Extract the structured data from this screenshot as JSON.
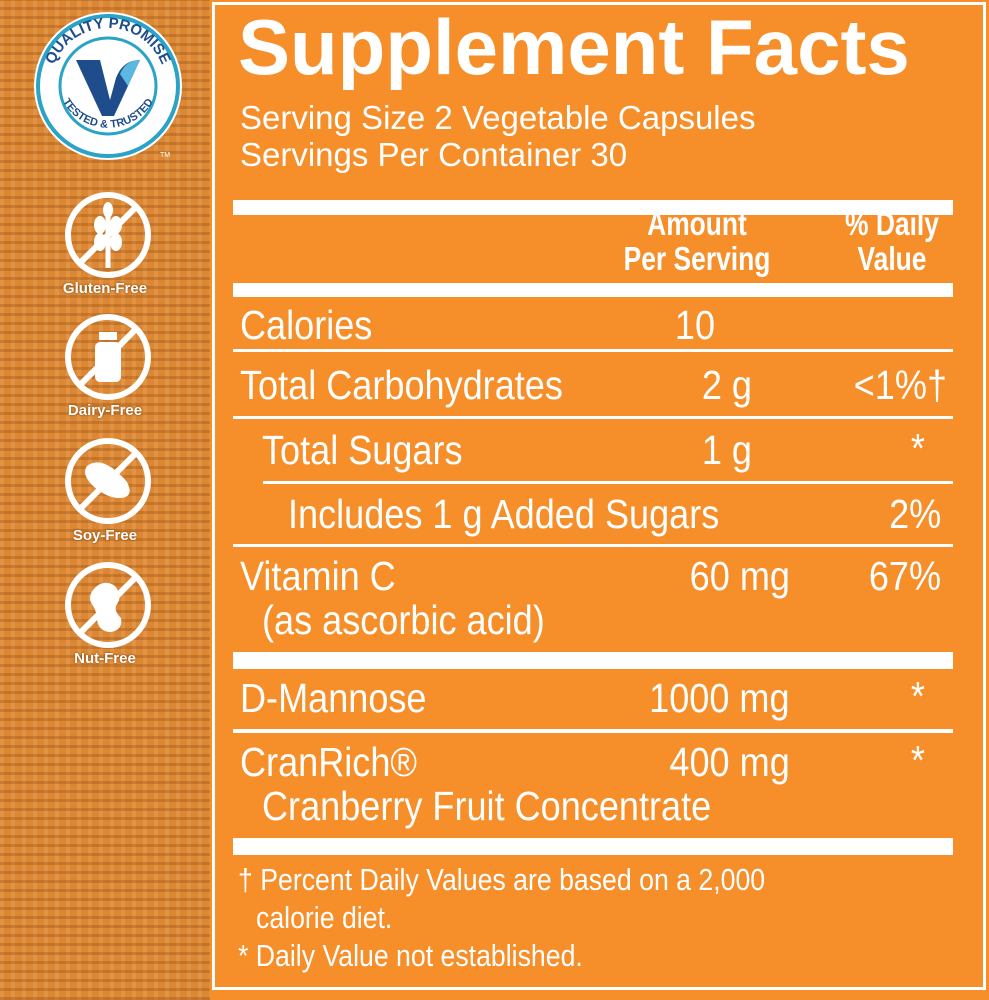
{
  "badges": {
    "quality": {
      "top_text": "QUALITY PROMISE",
      "bottom_text": "TESTED & TRUSTED",
      "tm": "TM"
    },
    "items": [
      {
        "label": "Gluten-Free",
        "icon": "wheat-icon"
      },
      {
        "label": "Dairy-Free",
        "icon": "milk-bottle-icon"
      },
      {
        "label": "Soy-Free",
        "icon": "soybean-icon"
      },
      {
        "label": "Nut-Free",
        "icon": "peanut-icon"
      }
    ]
  },
  "facts": {
    "title": "Supplement Facts",
    "serving_size": "Serving Size 2 Vegetable Capsules",
    "servings_per_container": "Servings Per Container 30",
    "header": {
      "amount_line1": "Amount",
      "amount_line2": "Per Serving",
      "dv_line1": "% Daily",
      "dv_line2": "Value"
    },
    "rows": [
      {
        "name": "Calories",
        "amount": "10",
        "dv": ""
      },
      {
        "name": "Total Carbohydrates",
        "amount": "2 g",
        "dv": "<1%†"
      },
      {
        "name": "Total Sugars",
        "amount": "1 g",
        "dv": "*"
      },
      {
        "name": "Includes 1 g Added Sugars",
        "amount": "",
        "dv": "2%"
      },
      {
        "name": "Vitamin C",
        "sub": "(as ascorbic acid)",
        "amount": "60 mg",
        "dv": "67%"
      },
      {
        "name": "D-Mannose",
        "amount": "1000 mg",
        "dv": "*"
      },
      {
        "name": "CranRich®",
        "sub": "Cranberry Fruit Concentrate",
        "amount": "400 mg",
        "dv": "*"
      }
    ],
    "footnotes": {
      "dagger_line1": "† Percent Daily Values are based on a 2,000",
      "dagger_line2": "calorie diet.",
      "asterisk": "* Daily Value not established."
    }
  },
  "colors": {
    "panel": "#f68e2a",
    "badge_ring": "#2aa3c6",
    "badge_v_dark": "#1f4d8c",
    "badge_v_light": "#5bb8e0"
  }
}
